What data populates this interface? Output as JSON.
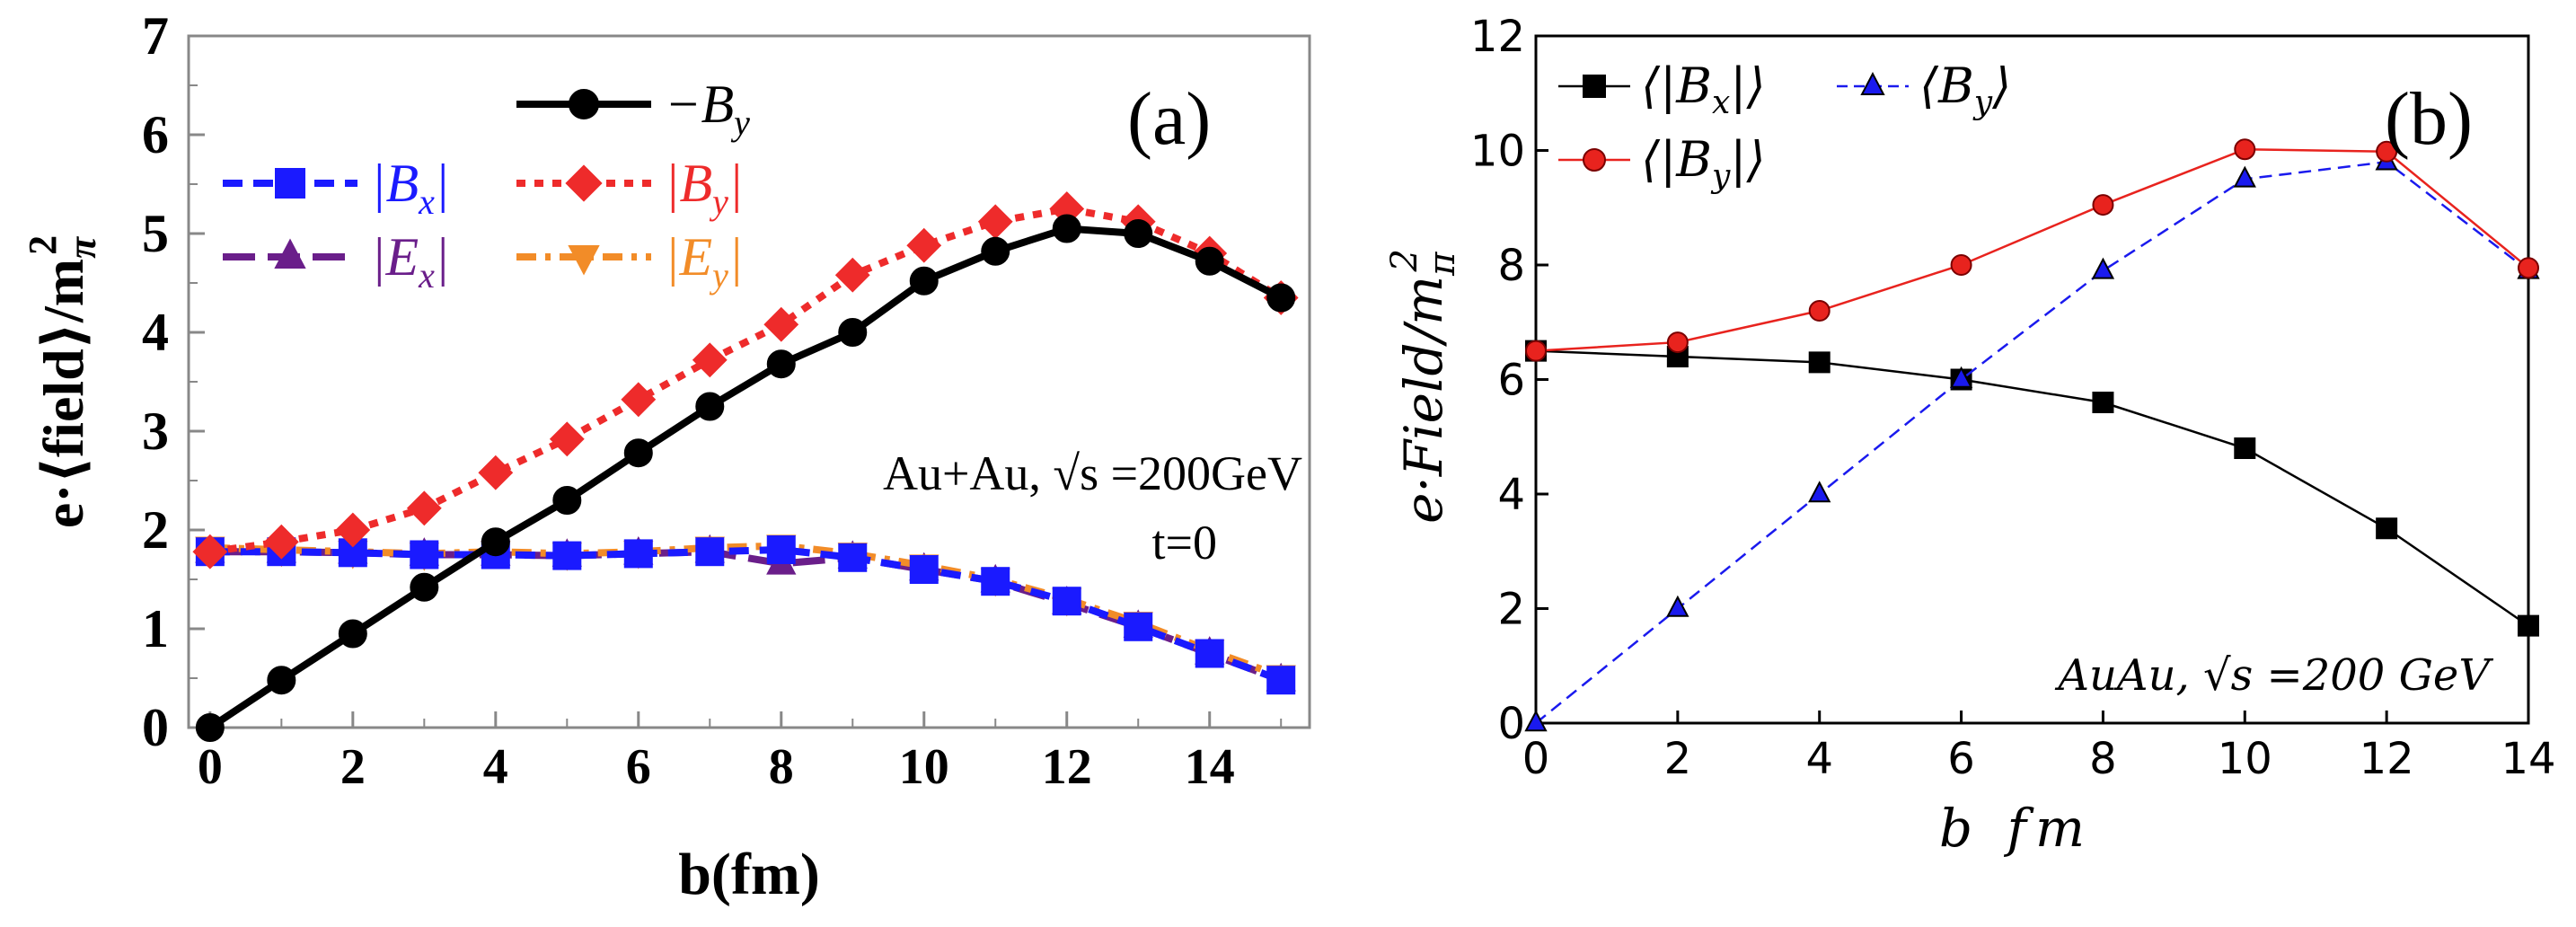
{
  "chart_data": [
    {
      "type": "line",
      "panel_label": "(a)",
      "xlabel": "b(fm)",
      "ylabel": "e·⟨field⟩/m",
      "ylabel_sub": "π",
      "ylabel_sup": "2",
      "xlim": [
        -0.3,
        15.4
      ],
      "ylim": [
        0,
        7
      ],
      "xticks": [
        0,
        2,
        4,
        6,
        8,
        10,
        12,
        14
      ],
      "yticks": [
        0,
        1,
        2,
        3,
        4,
        5,
        6,
        7
      ],
      "annotation_line1": "Au+Au, √s =200GeV",
      "annotation_line2": "t=0",
      "x": [
        0,
        1,
        2,
        3,
        4,
        5,
        6,
        7,
        8,
        9,
        10,
        11,
        12,
        13,
        14,
        15
      ],
      "series": [
        {
          "name": "−By",
          "legend_main": "−B",
          "legend_sub": "y",
          "color": "#000000",
          "marker": "circle",
          "style": "solid",
          "values": [
            0,
            0.48,
            0.95,
            1.42,
            1.88,
            2.3,
            2.78,
            3.25,
            3.68,
            4.0,
            4.52,
            4.82,
            5.05,
            5.0,
            4.72,
            4.35
          ]
        },
        {
          "name": "|Bx|",
          "legend_main": "|B",
          "legend_sub": "x",
          "legend_end": "|",
          "color": "#1a1aff",
          "marker": "square",
          "style": "dashed",
          "values": [
            1.78,
            1.78,
            1.77,
            1.75,
            1.75,
            1.74,
            1.76,
            1.78,
            1.8,
            1.72,
            1.6,
            1.48,
            1.28,
            1.02,
            0.75,
            0.48
          ]
        },
        {
          "name": "|By|",
          "legend_main": "|B",
          "legend_sub": "y",
          "legend_end": "|",
          "color": "#ee2b2b",
          "marker": "diamond",
          "style": "dotted",
          "values": [
            1.78,
            1.88,
            2.0,
            2.22,
            2.58,
            2.92,
            3.32,
            3.72,
            4.08,
            4.58,
            4.88,
            5.12,
            5.25,
            5.12,
            4.8,
            4.35
          ]
        },
        {
          "name": "|Ex|",
          "legend_main": "|E",
          "legend_sub": "x",
          "legend_end": "|",
          "color": "#6a1e8a",
          "marker": "triangle-up",
          "style": "longdash",
          "values": [
            1.78,
            1.78,
            1.77,
            1.75,
            1.75,
            1.74,
            1.76,
            1.78,
            1.66,
            1.72,
            1.6,
            1.48,
            1.26,
            1.02,
            0.75,
            0.48
          ]
        },
        {
          "name": "|Ey|",
          "legend_main": "|E",
          "legend_sub": "y",
          "legend_end": "|",
          "color": "#f28c28",
          "marker": "triangle-down",
          "style": "dashdot",
          "values": [
            1.82,
            1.8,
            1.78,
            1.76,
            1.78,
            1.76,
            1.78,
            1.82,
            1.84,
            1.76,
            1.64,
            1.5,
            1.3,
            1.06,
            0.78,
            0.52
          ]
        }
      ]
    },
    {
      "type": "line",
      "panel_label": "(b)",
      "xlabel": "b fm",
      "ylabel": "e·Field/m",
      "ylabel_sub": "π",
      "ylabel_sup": "2",
      "xlim": [
        0,
        14
      ],
      "ylim": [
        0,
        12
      ],
      "xticks": [
        0,
        2,
        4,
        6,
        8,
        10,
        12,
        14
      ],
      "yticks": [
        0,
        2,
        4,
        6,
        8,
        10,
        12
      ],
      "annotation": "AuAu, √s =200 GeV",
      "x": [
        0,
        2,
        4,
        6,
        8,
        10,
        12,
        14
      ],
      "series": [
        {
          "name": "⟨|Bx|⟩",
          "legend_main": "⟨|B",
          "legend_sub": "x",
          "legend_end": "|⟩",
          "color": "#000000",
          "marker": "square",
          "style": "solid",
          "values": [
            6.5,
            6.4,
            6.3,
            6.0,
            5.6,
            4.8,
            3.4,
            1.7
          ]
        },
        {
          "name": "⟨By⟩",
          "legend_main": "⟨B",
          "legend_sub": "y",
          "legend_end": "⟩",
          "color": "#1a1aee",
          "marker": "triangle-up",
          "style": "dashed",
          "values": [
            0,
            2.0,
            4.0,
            6.0,
            7.9,
            9.5,
            9.8,
            7.9
          ]
        },
        {
          "name": "⟨|By|⟩",
          "legend_main": "⟨|B",
          "legend_sub": "y",
          "legend_end": "|⟩",
          "color": "#e8231e",
          "marker": "circle",
          "style": "solid",
          "values": [
            6.5,
            6.65,
            7.2,
            8.0,
            9.05,
            10.02,
            9.98,
            7.95
          ]
        }
      ]
    }
  ]
}
